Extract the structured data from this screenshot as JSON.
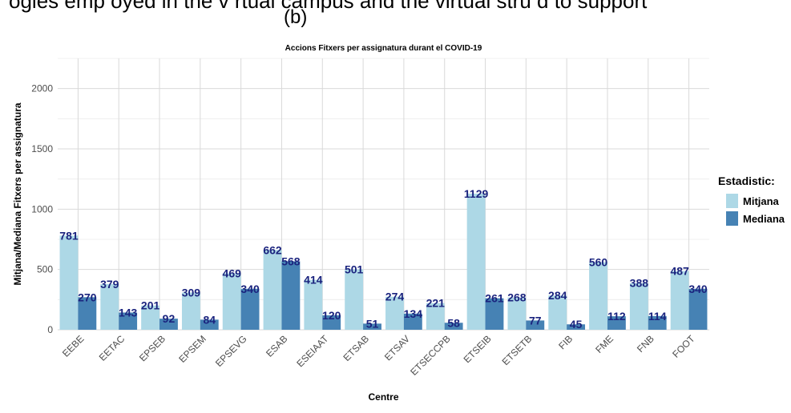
{
  "top_caption": "ogies emp oyed in the v rtual campus and the virtual stru d to support ",
  "panel_label": "(b)",
  "chart_data": {
    "type": "bar",
    "title": "Accions Fitxers per assignatura durant el COVID-19",
    "xlabel": "Centre",
    "ylabel": "Mitjana/Mediana Fitxers per assignatura",
    "ylim": [
      0,
      2250
    ],
    "yticks": [
      0,
      500,
      1000,
      1500,
      2000
    ],
    "grid": true,
    "legend_title": "Estadistic:",
    "legend_position": "right",
    "categories": [
      "EEBE",
      "EETAC",
      "EPSEB",
      "EPSEM",
      "EPSEVG",
      "ESAB",
      "ESEIAAT",
      "ETSAB",
      "ETSAV",
      "ETSECCPB",
      "ETSEIB",
      "ETSETB",
      "FIB",
      "FME",
      "FNB",
      "FOOT"
    ],
    "series": [
      {
        "name": "Mitjana",
        "color": "#add8e6",
        "values": [
          781,
          379,
          201,
          309,
          469,
          662,
          414,
          501,
          274,
          221,
          1129,
          268,
          284,
          560,
          388,
          487
        ]
      },
      {
        "name": "Mediana",
        "color": "#4682b4",
        "values": [
          270,
          143,
          92,
          84,
          340,
          568,
          120,
          51,
          134,
          58,
          261,
          77,
          45,
          112,
          114,
          340
        ]
      }
    ],
    "label_color": "#1a237e"
  }
}
